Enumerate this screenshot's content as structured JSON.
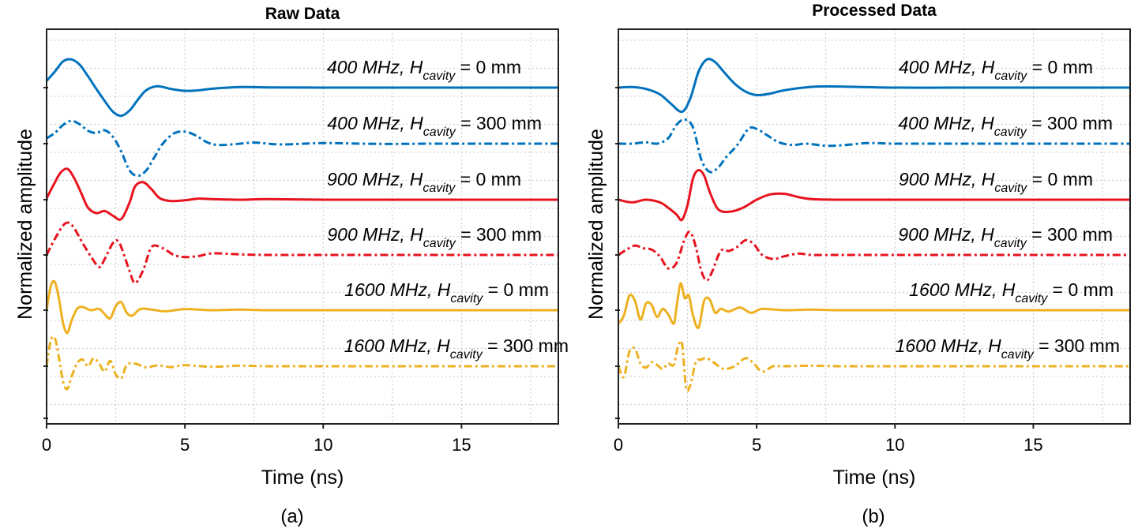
{
  "chart_data": [
    {
      "type": "line",
      "panel_label": "(a)",
      "title": "Raw Data",
      "xlabel": "Time (ns)",
      "ylabel": "Normalized amplitude",
      "xlim": [
        0,
        18.5
      ],
      "xticks": [
        "0",
        "5",
        "10",
        "15"
      ],
      "grid": true,
      "series": [
        {
          "name": "400 MHz, H_cavity = 0 mm",
          "label_main": "400 MHz, H",
          "label_sub": "cavity",
          "label_tail": " = 0 mm",
          "color": "#0072BD",
          "dash": "solid",
          "x": [
            0,
            0.3,
            0.6,
            0.9,
            1.2,
            1.5,
            1.8,
            2.1,
            2.4,
            2.7,
            3.0,
            3.3,
            3.6,
            4.0,
            4.5,
            5.0,
            5.5,
            6.0,
            7.0,
            8.0,
            10.0,
            12.0,
            14.0,
            16.0,
            18.5
          ],
          "y": [
            0.25,
            0.6,
            0.98,
            1.05,
            0.85,
            0.42,
            -0.05,
            -0.5,
            -0.9,
            -1.05,
            -0.85,
            -0.45,
            -0.1,
            0.05,
            -0.05,
            -0.12,
            -0.1,
            -0.04,
            0.02,
            0.01,
            0.0,
            0.0,
            0.0,
            0.0,
            0.0
          ]
        },
        {
          "name": "400 MHz, H_cavity = 300 mm",
          "label_main": "400 MHz, H",
          "label_sub": "cavity",
          "label_tail": " = 300 mm",
          "color": "#0072BD",
          "dash": "dashdot",
          "x": [
            0,
            0.3,
            0.6,
            0.9,
            1.2,
            1.5,
            1.8,
            2.1,
            2.4,
            2.7,
            3.0,
            3.3,
            3.6,
            3.9,
            4.2,
            4.6,
            5.0,
            5.4,
            5.8,
            6.2,
            6.8,
            7.5,
            8.5,
            10.0,
            12.0,
            14.0,
            16.0,
            18.5
          ],
          "y": [
            0.2,
            0.4,
            0.7,
            0.85,
            0.72,
            0.48,
            0.4,
            0.5,
            0.25,
            -0.3,
            -1.0,
            -1.2,
            -1.0,
            -0.5,
            0.0,
            0.38,
            0.45,
            0.3,
            0.05,
            -0.05,
            -0.02,
            0.04,
            -0.03,
            0.02,
            -0.01,
            0.0,
            0.0,
            0.0
          ]
        },
        {
          "name": "900 MHz, H_cavity = 0 mm",
          "label_main": "900 MHz, H",
          "label_sub": "cavity",
          "label_tail": " = 0 mm",
          "color": "#E8131E",
          "dash": "solid",
          "x": [
            0,
            0.25,
            0.5,
            0.75,
            1.0,
            1.25,
            1.5,
            1.8,
            2.1,
            2.4,
            2.7,
            3.0,
            3.2,
            3.5,
            3.8,
            4.1,
            4.5,
            5.0,
            5.5,
            6.0,
            7.0,
            8.0,
            10.0,
            12.0,
            14.0,
            16.0,
            18.5
          ],
          "y": [
            0.05,
            0.55,
            1.0,
            1.15,
            0.8,
            0.25,
            -0.3,
            -0.5,
            -0.42,
            -0.6,
            -0.72,
            -0.1,
            0.5,
            0.65,
            0.38,
            0.05,
            -0.05,
            -0.02,
            0.04,
            0.02,
            0.0,
            0.02,
            0.0,
            0.0,
            0.0,
            0.0,
            0.0
          ]
        },
        {
          "name": "900 MHz, H_cavity = 300 mm",
          "label_main": "900 MHz, H",
          "label_sub": "cavity",
          "label_tail": " = 300 mm",
          "color": "#E8131E",
          "dash": "dashdot",
          "x": [
            0,
            0.3,
            0.6,
            0.8,
            1.0,
            1.3,
            1.6,
            1.9,
            2.1,
            2.4,
            2.6,
            2.8,
            3.0,
            3.2,
            3.5,
            3.8,
            4.2,
            4.6,
            5.0,
            5.5,
            6.0,
            7.0,
            8.0,
            10.0,
            12.0,
            14.0,
            16.0,
            18.5
          ],
          "y": [
            0.0,
            0.6,
            1.1,
            1.2,
            1.0,
            0.45,
            -0.05,
            -0.45,
            -0.15,
            0.45,
            0.5,
            0.0,
            -0.6,
            -1.05,
            -0.55,
            0.3,
            0.25,
            0.0,
            -0.08,
            -0.04,
            0.06,
            0.02,
            0.0,
            0.0,
            0.0,
            0.0,
            0.0,
            0.0
          ]
        },
        {
          "name": "1600 MHz, H_cavity = 0 mm",
          "label_main": "1600 MHz, H",
          "label_sub": "cavity",
          "label_tail": " = 0 mm",
          "color": "#EDB120",
          "dash": "solid",
          "x": [
            0,
            0.15,
            0.3,
            0.45,
            0.6,
            0.75,
            0.9,
            1.1,
            1.3,
            1.6,
            1.9,
            2.1,
            2.3,
            2.5,
            2.7,
            2.9,
            3.1,
            3.4,
            3.8,
            4.3,
            5.0,
            6.0,
            7.0,
            8.0,
            10.0,
            12.0,
            14.0,
            16.0,
            18.5
          ],
          "y": [
            0.0,
            0.9,
            1.05,
            0.4,
            -0.5,
            -0.85,
            -0.4,
            0.05,
            0.12,
            0.0,
            0.05,
            -0.15,
            -0.3,
            0.15,
            0.3,
            -0.1,
            -0.2,
            0.05,
            0.02,
            -0.04,
            0.04,
            0.0,
            0.02,
            0.0,
            0.0,
            0.0,
            0.0,
            0.0,
            0.0
          ]
        },
        {
          "name": "1600 MHz, H_cavity = 300 mm",
          "label_main": "1600 MHz, H",
          "label_sub": "cavity",
          "label_tail": " = 300 mm",
          "color": "#EDB120",
          "dash": "dashdot",
          "x": [
            0,
            0.15,
            0.3,
            0.45,
            0.6,
            0.75,
            0.9,
            1.1,
            1.3,
            1.5,
            1.7,
            1.9,
            2.1,
            2.3,
            2.5,
            2.7,
            2.9,
            3.2,
            3.6,
            4.0,
            4.5,
            5.0,
            6.0,
            7.0,
            8.0,
            10.0,
            12.0,
            14.0,
            16.0,
            18.5
          ],
          "y": [
            0.0,
            0.95,
            1.05,
            0.3,
            -0.6,
            -0.85,
            -0.4,
            0.1,
            0.25,
            0.0,
            0.3,
            0.1,
            -0.2,
            0.2,
            -0.3,
            -0.45,
            0.05,
            0.1,
            -0.04,
            0.03,
            -0.03,
            0.04,
            -0.02,
            0.02,
            0.0,
            0.0,
            0.0,
            0.0,
            0.0,
            0.0
          ]
        }
      ]
    },
    {
      "type": "line",
      "panel_label": "(b)",
      "title": "Processed Data",
      "xlabel": "Time (ns)",
      "ylabel": "Normalized amplitude",
      "xlim": [
        0,
        18.5
      ],
      "xticks": [
        "0",
        "5",
        "10",
        "15"
      ],
      "grid": true,
      "series": [
        {
          "name": "400 MHz, H_cavity = 0 mm",
          "label_main": "400 MHz, H",
          "label_sub": "cavity",
          "label_tail": " = 0 mm",
          "color": "#0072BD",
          "dash": "solid",
          "x": [
            0,
            0.5,
            1.0,
            1.5,
            1.9,
            2.3,
            2.6,
            2.9,
            3.2,
            3.5,
            3.8,
            4.2,
            4.6,
            5.0,
            5.5,
            6.0,
            7.0,
            8.0,
            10.0,
            12.0,
            14.0,
            16.0,
            18.5
          ],
          "y": [
            0.0,
            0.02,
            -0.05,
            -0.25,
            -0.6,
            -0.9,
            -0.4,
            0.6,
            1.05,
            0.95,
            0.6,
            0.15,
            -0.15,
            -0.28,
            -0.22,
            -0.1,
            0.03,
            0.04,
            0.0,
            0.0,
            0.0,
            0.0,
            0.0
          ]
        },
        {
          "name": "400 MHz, H_cavity = 300 mm",
          "label_main": "400 MHz, H",
          "label_sub": "cavity",
          "label_tail": " = 300 mm",
          "color": "#0072BD",
          "dash": "dashdot",
          "x": [
            0,
            0.5,
            1.0,
            1.4,
            1.8,
            2.1,
            2.4,
            2.7,
            3.0,
            3.3,
            3.6,
            3.9,
            4.3,
            4.7,
            5.0,
            5.4,
            5.8,
            6.3,
            6.8,
            7.5,
            8.2,
            9.0,
            10.0,
            12.0,
            14.0,
            16.0,
            18.5
          ],
          "y": [
            0.0,
            0.0,
            0.05,
            0.0,
            0.2,
            0.7,
            0.9,
            0.6,
            -0.6,
            -1.05,
            -0.9,
            -0.5,
            -0.05,
            0.55,
            0.55,
            0.3,
            0.05,
            -0.05,
            0.0,
            -0.08,
            -0.05,
            0.02,
            0.0,
            0.0,
            0.0,
            0.0,
            0.0
          ]
        },
        {
          "name": "900 MHz, H_cavity = 0 mm",
          "label_main": "900 MHz, H",
          "label_sub": "cavity",
          "label_tail": " = 0 mm",
          "color": "#E8131E",
          "dash": "solid",
          "x": [
            0,
            0.5,
            1.0,
            1.5,
            1.8,
            2.1,
            2.3,
            2.5,
            2.7,
            2.9,
            3.1,
            3.3,
            3.6,
            4.0,
            4.5,
            5.0,
            5.5,
            6.0,
            6.5,
            7.0,
            8.0,
            10.0,
            12.0,
            14.0,
            16.0,
            18.5
          ],
          "y": [
            0.0,
            -0.1,
            0.0,
            -0.1,
            -0.3,
            -0.55,
            -0.75,
            -0.2,
            0.8,
            1.1,
            0.9,
            0.3,
            -0.35,
            -0.45,
            -0.3,
            0.0,
            0.2,
            0.22,
            0.1,
            0.02,
            0.0,
            0.0,
            0.0,
            0.0,
            0.0,
            0.0
          ]
        },
        {
          "name": "900 MHz, H_cavity = 300 mm",
          "label_main": "900 MHz, H",
          "label_sub": "cavity",
          "label_tail": " = 300 mm",
          "color": "#E8131E",
          "dash": "dashdot",
          "x": [
            0,
            0.3,
            0.6,
            0.9,
            1.2,
            1.5,
            1.8,
            2.1,
            2.4,
            2.6,
            2.8,
            3.0,
            3.2,
            3.4,
            3.7,
            4.0,
            4.3,
            4.6,
            4.9,
            5.2,
            5.6,
            6.0,
            6.5,
            7.0,
            8.0,
            10.0,
            12.0,
            14.0,
            16.0,
            18.5
          ],
          "y": [
            0.0,
            0.2,
            0.35,
            0.25,
            0.2,
            -0.05,
            -0.5,
            -0.3,
            0.6,
            0.85,
            0.3,
            -0.6,
            -0.95,
            -0.6,
            0.15,
            0.15,
            0.3,
            0.55,
            0.4,
            0.0,
            -0.15,
            -0.05,
            0.05,
            0.0,
            0.0,
            0.0,
            0.0,
            0.0,
            0.0,
            0.0
          ]
        },
        {
          "name": "1600 MHz, H_cavity = 0 mm",
          "label_main": "1600 MHz, H",
          "label_sub": "cavity",
          "label_tail": " = 0 mm",
          "color": "#EDB120",
          "dash": "solid",
          "x": [
            0,
            0.2,
            0.4,
            0.6,
            0.8,
            1.0,
            1.2,
            1.4,
            1.6,
            1.8,
            2.0,
            2.1,
            2.25,
            2.4,
            2.55,
            2.7,
            2.9,
            3.1,
            3.3,
            3.5,
            3.7,
            4.0,
            4.4,
            4.8,
            5.2,
            6.0,
            7.0,
            8.0,
            10.0,
            12.0,
            14.0,
            16.0,
            18.5
          ],
          "y": [
            -0.5,
            -0.2,
            0.55,
            0.35,
            -0.35,
            0.25,
            0.2,
            -0.25,
            0.05,
            -0.15,
            -0.5,
            0.1,
            1.0,
            0.45,
            0.55,
            -0.2,
            -0.65,
            0.35,
            0.4,
            -0.1,
            0.05,
            -0.05,
            0.1,
            -0.1,
            0.05,
            0.0,
            0.02,
            0.0,
            0.0,
            0.0,
            0.0,
            0.0,
            0.0
          ]
        },
        {
          "name": "1600 MHz, H_cavity = 300 mm",
          "label_main": "1600 MHz, H",
          "label_sub": "cavity",
          "label_tail": " = 300 mm",
          "color": "#EDB120",
          "dash": "dashdot",
          "x": [
            0,
            0.2,
            0.4,
            0.6,
            0.8,
            1.0,
            1.2,
            1.4,
            1.6,
            1.8,
            2.0,
            2.15,
            2.3,
            2.45,
            2.6,
            2.8,
            3.0,
            3.2,
            3.5,
            3.8,
            4.2,
            4.6,
            4.9,
            5.2,
            5.6,
            6.0,
            7.0,
            8.0,
            10.0,
            12.0,
            14.0,
            16.0,
            18.5
          ],
          "y": [
            0.0,
            -0.4,
            0.55,
            0.65,
            0.1,
            -0.05,
            0.15,
            0.05,
            -0.1,
            0.1,
            0.05,
            0.7,
            0.85,
            -0.8,
            -0.7,
            0.15,
            0.25,
            0.3,
            0.1,
            -0.1,
            0.0,
            0.3,
            0.1,
            -0.2,
            0.0,
            0.0,
            0.02,
            0.0,
            0.0,
            0.0,
            0.0,
            0.0,
            0.0
          ]
        }
      ]
    }
  ]
}
